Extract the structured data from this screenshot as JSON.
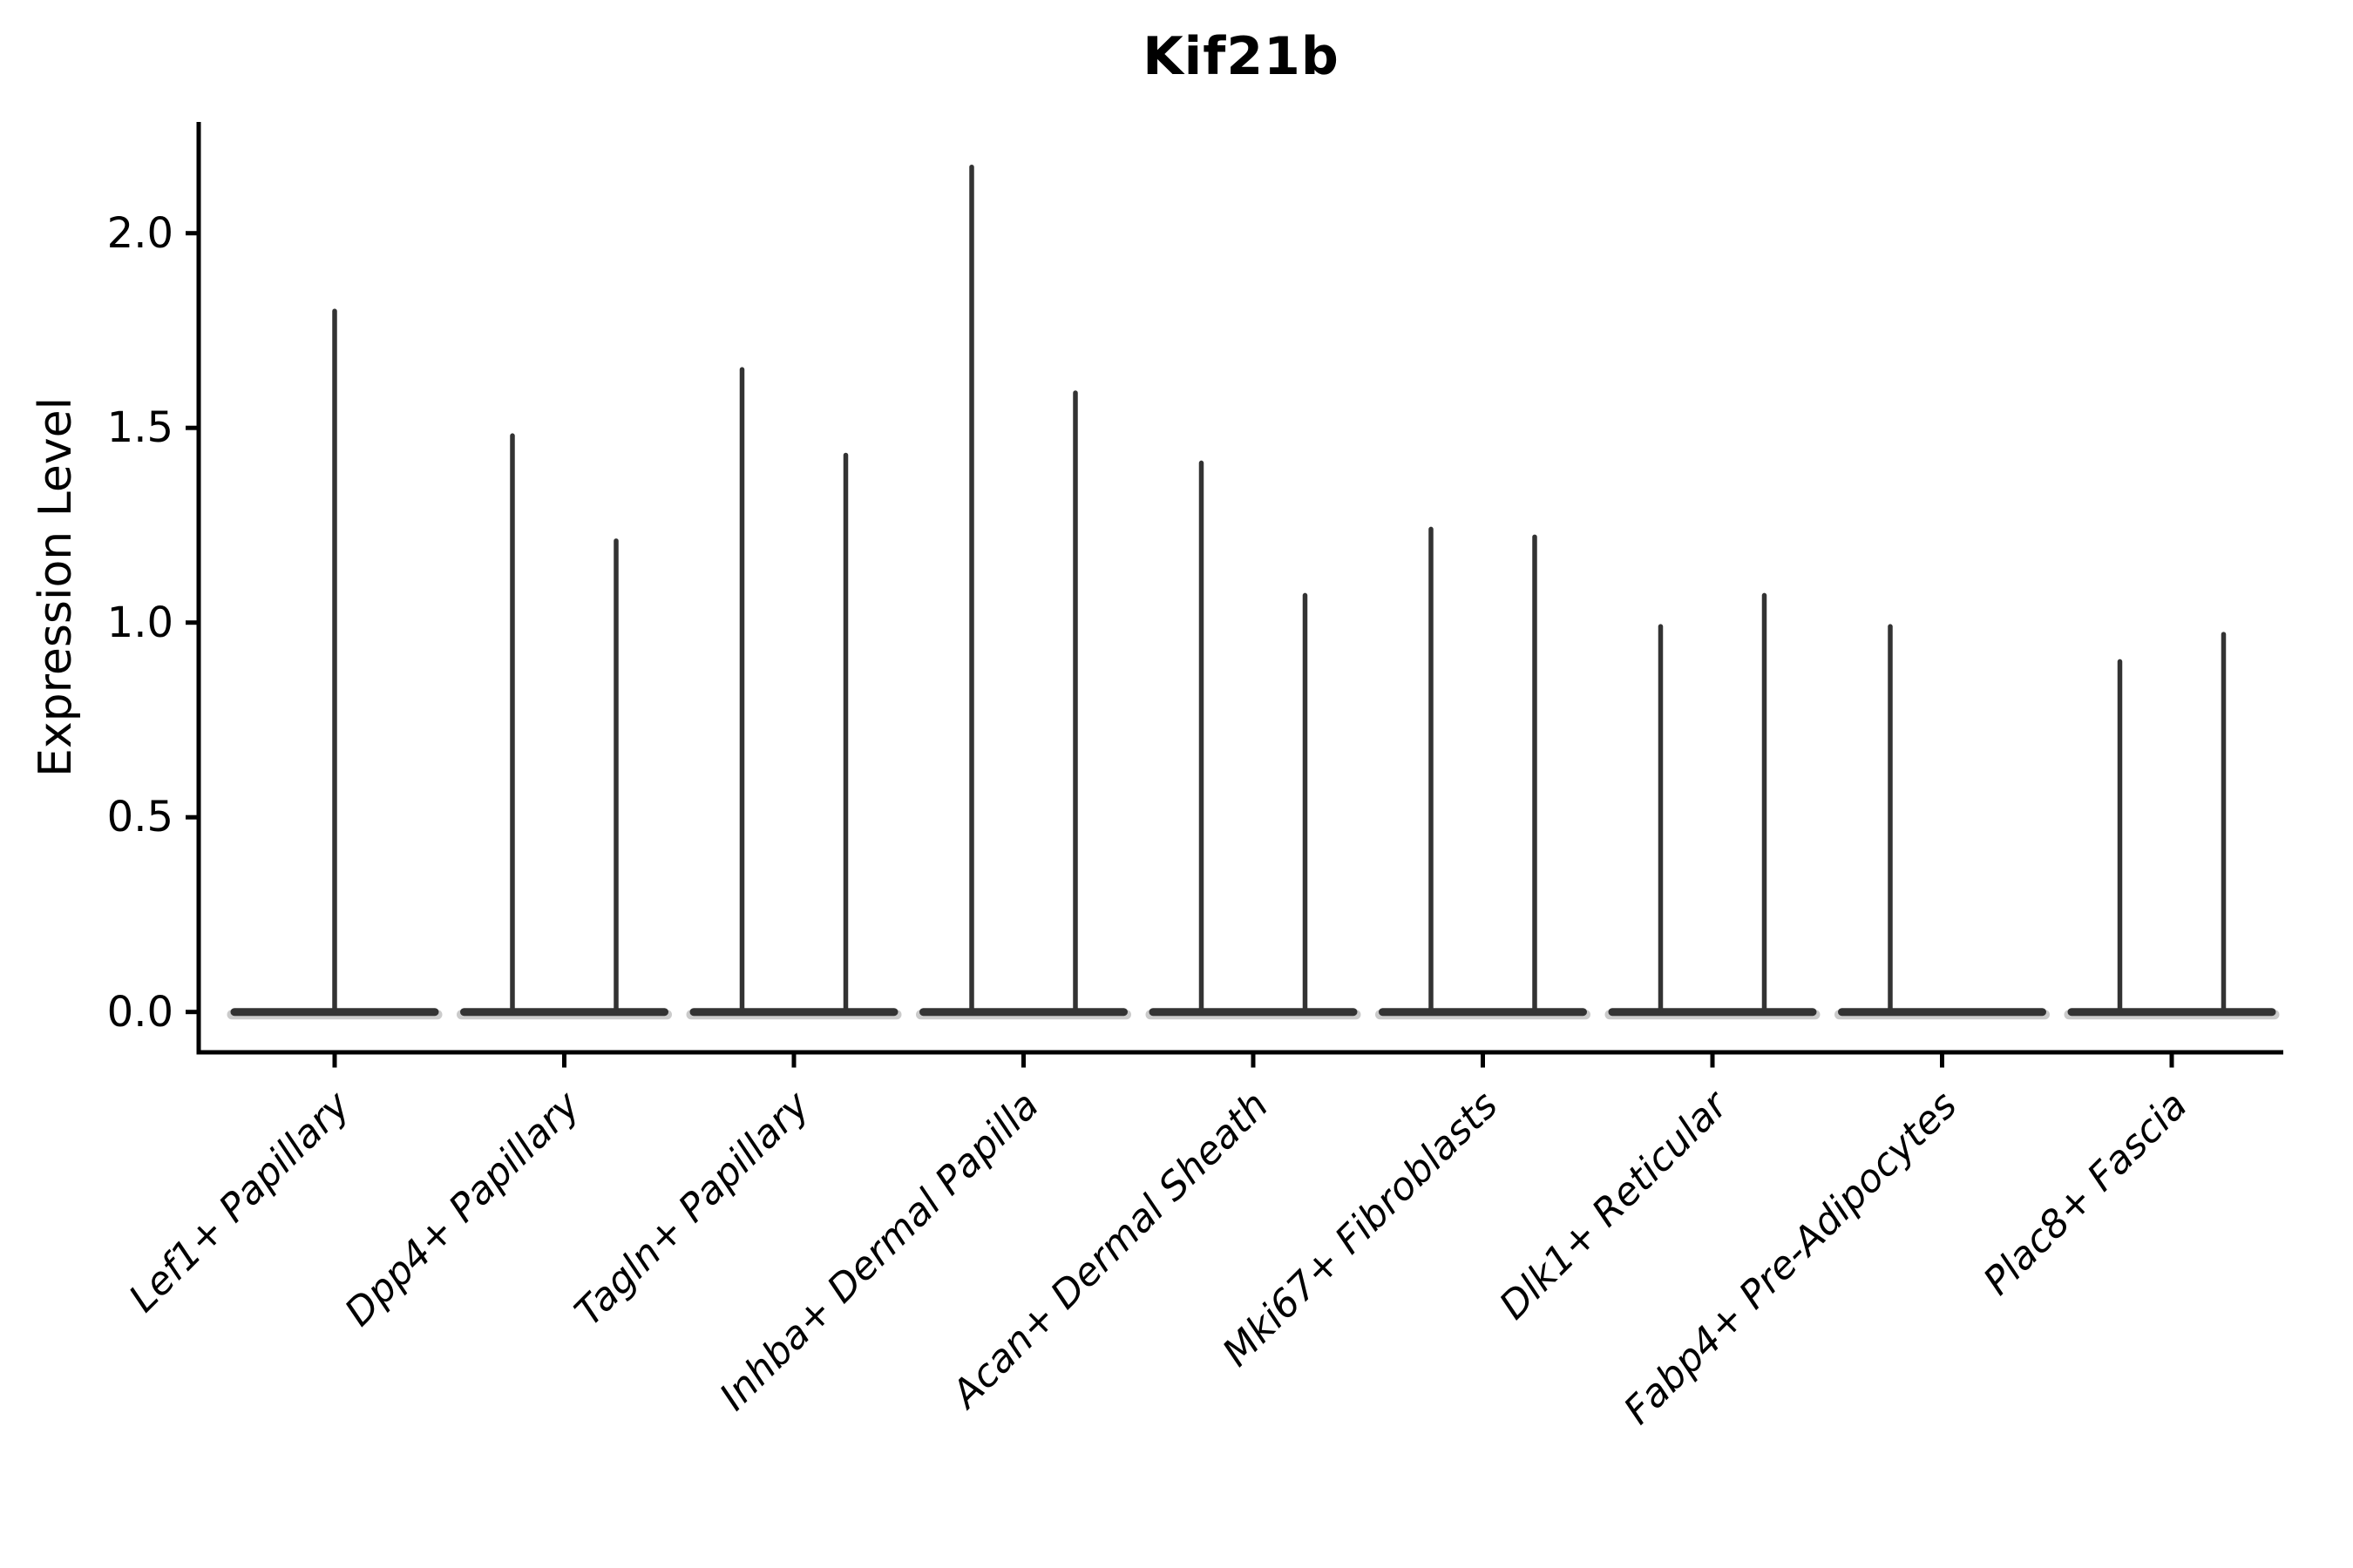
{
  "chart_data": {
    "type": "violin",
    "title": "Kif21b",
    "ylabel": "Expression Level",
    "xlabel": "",
    "ytick_labels": [
      "0.0",
      "0.5",
      "1.0",
      "1.5",
      "2.0"
    ],
    "yticks": [
      0.0,
      0.5,
      1.0,
      1.5,
      2.0
    ],
    "ylim": [
      -0.1,
      2.29
    ],
    "grid": false,
    "legend": "none",
    "baseline_value": 0.0,
    "categories": [
      "Lef1+ Papillary",
      "Dpp4+ Papillary",
      "Tagln+ Papillary",
      "Inhba+ Dermal Papilla",
      "Acan+ Dermal Sheath",
      "Mki67+ Fibroblasts",
      "Dlk1+ Reticular",
      "Fabp4+ Pre-Adipocytes",
      "Plac8+ Fascia"
    ],
    "violins": [
      {
        "category": "Lef1+ Papillary",
        "spikes": [
          {
            "position": "center",
            "max": 1.8
          }
        ]
      },
      {
        "category": "Dpp4+ Papillary",
        "spikes": [
          {
            "position": "left",
            "max": 1.48
          },
          {
            "position": "right",
            "max": 1.21
          }
        ]
      },
      {
        "category": "Tagln+ Papillary",
        "spikes": [
          {
            "position": "left",
            "max": 1.65
          },
          {
            "position": "right",
            "max": 1.43
          }
        ]
      },
      {
        "category": "Inhba+ Dermal Papilla",
        "spikes": [
          {
            "position": "left",
            "max": 2.17
          },
          {
            "position": "right",
            "max": 1.59
          }
        ]
      },
      {
        "category": "Acan+ Dermal Sheath",
        "spikes": [
          {
            "position": "left",
            "max": 1.41
          },
          {
            "position": "right",
            "max": 1.07
          }
        ]
      },
      {
        "category": "Mki67+ Fibroblasts",
        "spikes": [
          {
            "position": "left",
            "max": 1.24
          },
          {
            "position": "right",
            "max": 1.22
          }
        ]
      },
      {
        "category": "Dlk1+ Reticular",
        "spikes": [
          {
            "position": "left",
            "max": 0.99
          },
          {
            "position": "right",
            "max": 1.07
          }
        ]
      },
      {
        "category": "Fabp4+ Pre-Adipocytes",
        "spikes": [
          {
            "position": "left",
            "max": 0.99
          },
          {
            "position": "right",
            "max": 0.0
          }
        ]
      },
      {
        "category": "Plac8+ Fascia",
        "spikes": [
          {
            "position": "left",
            "max": 0.9
          },
          {
            "position": "right",
            "max": 0.97
          }
        ]
      }
    ],
    "colors": {
      "violin_stroke": "#333333",
      "violin_fill_halo": "#8c8c8c",
      "axis": "#000000",
      "text": "#000000",
      "background": "#ffffff"
    }
  }
}
